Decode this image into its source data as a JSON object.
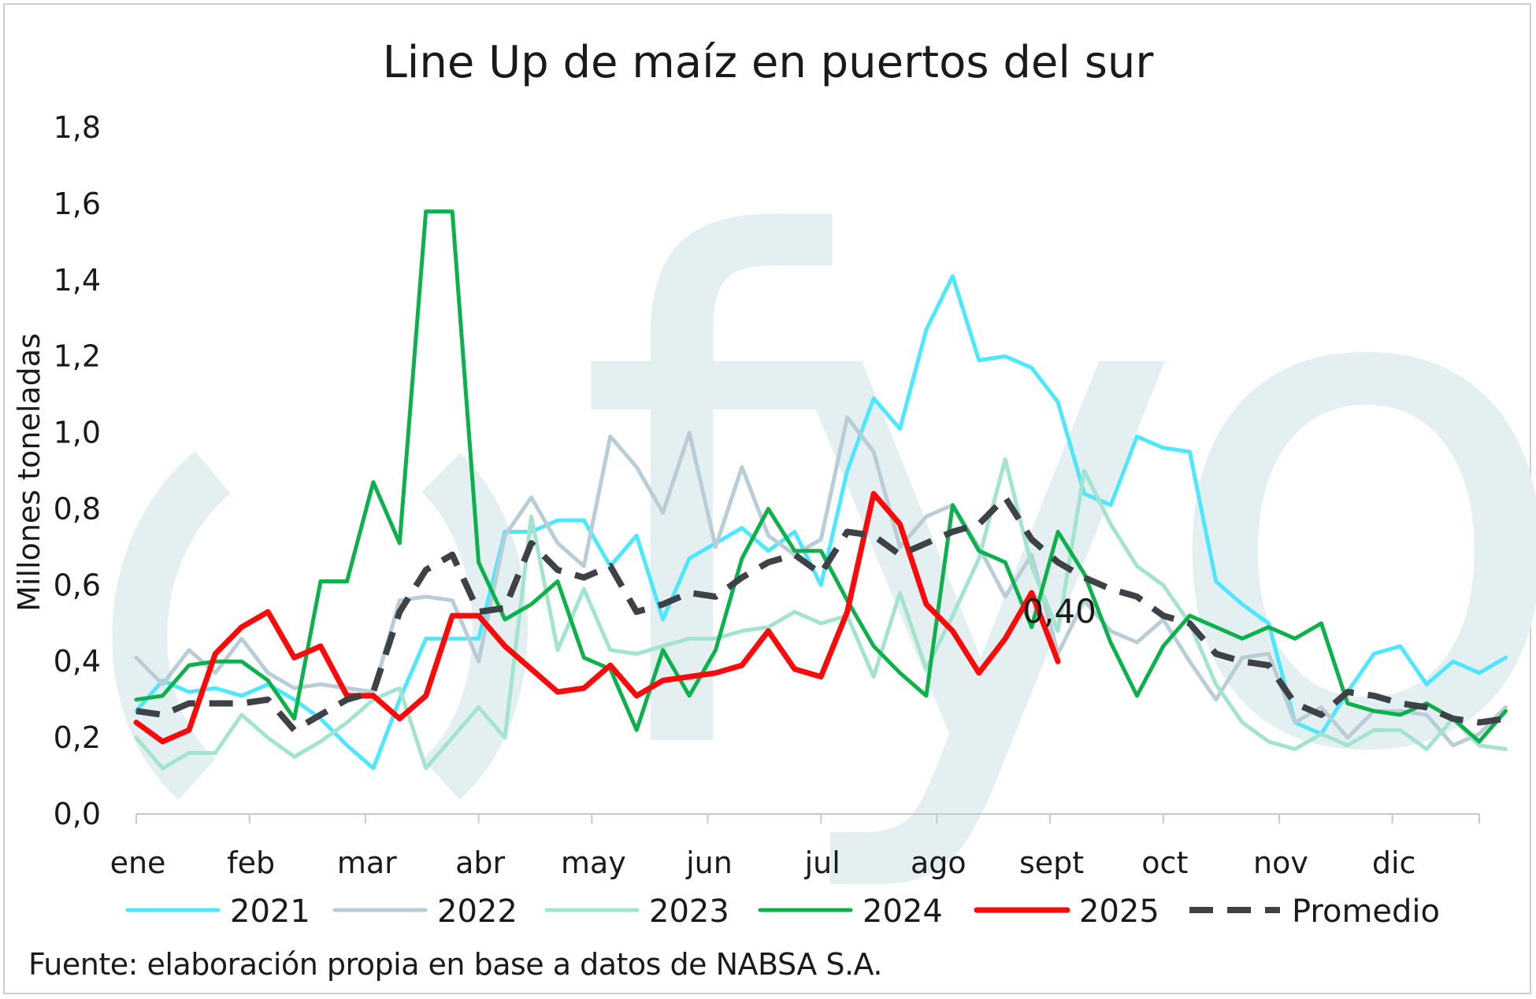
{
  "chart_data": {
    "type": "line",
    "title": "Line Up de maíz en puertos del sur",
    "ylabel": "Millones toneladas",
    "xlabel": "",
    "ylim": [
      0,
      1.8
    ],
    "yticks": [
      "0,0",
      "0,2",
      "0,4",
      "0,6",
      "0,8",
      "1,0",
      "1,2",
      "1,4",
      "1,6",
      "1,8"
    ],
    "months": [
      "ene",
      "feb",
      "mar",
      "abr",
      "may",
      "jun",
      "jul",
      "ago",
      "sept",
      "oct",
      "nov",
      "dic"
    ],
    "weeks_total": 52,
    "watermark": "fyo",
    "annotation": {
      "text": "0,40",
      "series": "2025"
    },
    "series": [
      {
        "name": "2021",
        "color": "#4de7ff",
        "width": 5,
        "dash": false,
        "values": [
          0.27,
          0.35,
          0.32,
          0.33,
          0.31,
          0.34,
          0.3,
          0.25,
          0.18,
          0.12,
          0.3,
          0.46,
          0.46,
          0.46,
          0.74,
          0.74,
          0.77,
          0.77,
          0.65,
          0.73,
          0.51,
          0.67,
          0.71,
          0.75,
          0.69,
          0.74,
          0.6,
          0.9,
          1.09,
          1.01,
          1.27,
          1.41,
          1.19,
          1.2,
          1.17,
          1.08,
          0.84,
          0.81,
          0.99,
          0.96,
          0.95,
          0.61,
          0.55,
          0.5,
          0.24,
          0.21,
          0.32,
          0.42,
          0.44,
          0.34,
          0.4,
          0.37,
          0.41
        ]
      },
      {
        "name": "2022",
        "color": "#b8cdd6",
        "width": 5,
        "dash": false,
        "values": [
          0.41,
          0.34,
          0.43,
          0.37,
          0.46,
          0.37,
          0.33,
          0.34,
          0.33,
          0.32,
          0.56,
          0.57,
          0.56,
          0.4,
          0.73,
          0.83,
          0.71,
          0.65,
          0.99,
          0.91,
          0.79,
          1.0,
          0.7,
          0.91,
          0.73,
          0.68,
          0.72,
          1.04,
          0.95,
          0.7,
          0.78,
          0.81,
          0.7,
          0.57,
          0.68,
          0.42,
          0.56,
          0.48,
          0.45,
          0.51,
          0.4,
          0.3,
          0.41,
          0.42,
          0.24,
          0.28,
          0.2,
          0.27,
          0.27,
          0.26,
          0.18,
          0.21,
          0.28
        ]
      },
      {
        "name": "2023",
        "color": "#a3e4cf",
        "width": 5,
        "dash": false,
        "values": [
          0.2,
          0.12,
          0.16,
          0.16,
          0.26,
          0.2,
          0.15,
          0.19,
          0.24,
          0.3,
          0.33,
          0.12,
          0.2,
          0.28,
          0.2,
          0.78,
          0.43,
          0.59,
          0.43,
          0.42,
          0.44,
          0.46,
          0.46,
          0.48,
          0.49,
          0.53,
          0.5,
          0.52,
          0.36,
          0.58,
          0.38,
          0.52,
          0.67,
          0.93,
          0.65,
          0.48,
          0.9,
          0.76,
          0.65,
          0.6,
          0.5,
          0.34,
          0.24,
          0.19,
          0.17,
          0.21,
          0.18,
          0.22,
          0.22,
          0.17,
          0.25,
          0.18,
          0.17
        ]
      },
      {
        "name": "2024",
        "color": "#0db14b",
        "width": 5,
        "dash": false,
        "values": [
          0.3,
          0.31,
          0.39,
          0.4,
          0.4,
          0.35,
          0.25,
          0.61,
          0.61,
          0.87,
          0.71,
          1.58,
          1.58,
          0.66,
          0.51,
          0.55,
          0.61,
          0.41,
          0.38,
          0.22,
          0.43,
          0.31,
          0.43,
          0.67,
          0.8,
          0.69,
          0.69,
          0.56,
          0.44,
          0.37,
          0.31,
          0.81,
          0.69,
          0.66,
          0.49,
          0.74,
          0.63,
          0.45,
          0.31,
          0.44,
          0.52,
          0.49,
          0.46,
          0.49,
          0.46,
          0.5,
          0.29,
          0.27,
          0.26,
          0.29,
          0.25,
          0.19,
          0.27
        ]
      },
      {
        "name": "2025",
        "color": "#fc0a0a",
        "width": 7,
        "dash": false,
        "values": [
          0.24,
          0.19,
          0.22,
          0.42,
          0.49,
          0.53,
          0.41,
          0.44,
          0.31,
          0.31,
          0.25,
          0.31,
          0.52,
          0.52,
          0.44,
          0.38,
          0.32,
          0.33,
          0.39,
          0.31,
          0.35,
          0.36,
          0.37,
          0.39,
          0.48,
          0.38,
          0.36,
          0.53,
          0.84,
          0.76,
          0.55,
          0.48,
          0.37,
          0.46,
          0.58,
          0.4
        ]
      },
      {
        "name": "Promedio",
        "color": "#3e4246",
        "width": 8,
        "dash": true,
        "values": [
          0.27,
          0.26,
          0.29,
          0.29,
          0.29,
          0.3,
          0.22,
          0.26,
          0.3,
          0.32,
          0.53,
          0.64,
          0.68,
          0.53,
          0.54,
          0.71,
          0.64,
          0.62,
          0.65,
          0.53,
          0.55,
          0.58,
          0.57,
          0.62,
          0.66,
          0.68,
          0.63,
          0.74,
          0.73,
          0.68,
          0.71,
          0.74,
          0.76,
          0.83,
          0.72,
          0.66,
          0.62,
          0.59,
          0.57,
          0.52,
          0.5,
          0.42,
          0.4,
          0.39,
          0.29,
          0.26,
          0.32,
          0.31,
          0.29,
          0.28,
          0.25,
          0.24,
          0.25
        ]
      }
    ],
    "legend": [
      "2021",
      "2022",
      "2023",
      "2024",
      "2025",
      "Promedio"
    ],
    "legend_position": "bottom"
  },
  "source": "Fuente: elaboración propia en base a datos de NABSA S.A."
}
